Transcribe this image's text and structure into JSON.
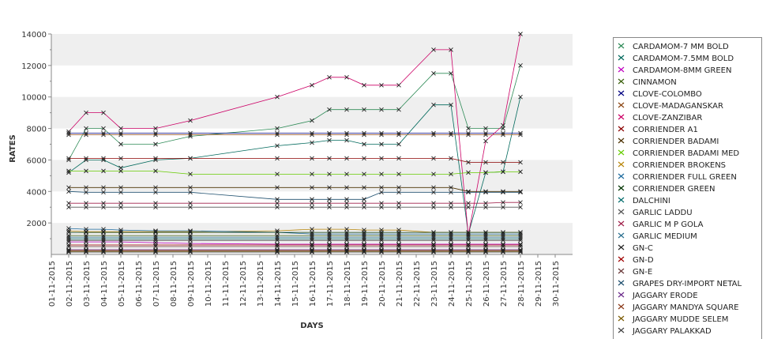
{
  "chart_data": {
    "type": "line",
    "title": "",
    "xlabel": "DAYS",
    "ylabel": "RATES",
    "x_categories": [
      "01-11-2015",
      "02-11-2015",
      "03-11-2015",
      "04-11-2015",
      "05-11-2015",
      "06-11-2015",
      "07-11-2015",
      "08-11-2015",
      "09-11-2015",
      "10-11-2015",
      "11-11-2015",
      "12-11-2015",
      "13-11-2015",
      "14-11-2015",
      "15-11-2015",
      "16-11-2015",
      "17-11-2015",
      "18-11-2015",
      "19-11-2015",
      "20-11-2015",
      "21-11-2015",
      "22-11-2015",
      "23-11-2015",
      "24-11-2015",
      "25-11-2015",
      "26-11-2015",
      "27-11-2015",
      "28-11-2015",
      "29-11-2015",
      "30-11-2015"
    ],
    "ylim": [
      0,
      14000
    ],
    "yticks": [
      2000,
      4000,
      6000,
      8000,
      10000,
      12000,
      14000
    ],
    "grid": "alternating horizontal bands",
    "legend_position": "right",
    "series": [
      {
        "name": "CARDAMOM-7 MM BOLD",
        "color": "#2e8b57",
        "dates": [
          2,
          3,
          4,
          5,
          7,
          9,
          14,
          16,
          17,
          18,
          19,
          20,
          21,
          23,
          24,
          25,
          26,
          27,
          28
        ],
        "values": [
          6000,
          8000,
          8000,
          7000,
          7000,
          7500,
          8000,
          8500,
          9200,
          9200,
          9200,
          9200,
          9200,
          11500,
          11500,
          8000,
          8000,
          8000,
          12000
        ]
      },
      {
        "name": "CARDAMOM-7.5MM BOLD",
        "color": "#00695c",
        "dates": [
          2,
          3,
          4,
          5,
          7,
          9,
          14,
          16,
          17,
          18,
          19,
          20,
          21,
          23,
          24,
          25,
          26,
          27,
          28
        ],
        "values": [
          5200,
          6000,
          6000,
          5500,
          6000,
          6100,
          6900,
          7100,
          7250,
          7250,
          7000,
          7000,
          7000,
          9500,
          9500,
          1300,
          5200,
          5250,
          10000
        ]
      },
      {
        "name": "CARDAMOM-8MM GREEN",
        "color": "#c000c0",
        "dates": [
          2,
          3,
          4,
          5,
          7,
          9,
          14,
          16,
          17,
          18,
          19,
          20,
          21,
          23,
          24,
          25,
          26,
          27,
          28
        ],
        "values": [
          800,
          800,
          800,
          800,
          750,
          700,
          650,
          650,
          650,
          650,
          650,
          650,
          650,
          650,
          650,
          650,
          650,
          650,
          650
        ]
      },
      {
        "name": "CINNAMON",
        "color": "#3a5f0b",
        "dates": [
          2,
          3,
          4,
          5,
          7,
          9,
          14,
          16,
          17,
          18,
          19,
          20,
          21,
          23,
          24,
          25,
          26,
          27,
          28
        ],
        "values": [
          1200,
          1200,
          1200,
          1200,
          1200,
          1200,
          1200,
          1200,
          1200,
          1200,
          1200,
          1200,
          1200,
          1200,
          1200,
          1200,
          1200,
          1200,
          1200
        ]
      },
      {
        "name": "CLOVE-COLOMBO",
        "color": "#000080",
        "dates": [
          2,
          3,
          4,
          5,
          7,
          9,
          14,
          16,
          17,
          18,
          19,
          20,
          21,
          23,
          24,
          25,
          26,
          27,
          28
        ],
        "values": [
          7700,
          7700,
          7700,
          7700,
          7700,
          7700,
          7700,
          7700,
          7700,
          7700,
          7700,
          7700,
          7700,
          7700,
          7700,
          7700,
          7700,
          7700,
          7700
        ]
      },
      {
        "name": "CLOVE-MADAGANSKAR",
        "color": "#8b4513",
        "dates": [
          2,
          3,
          4,
          5,
          7,
          9,
          14,
          16,
          17,
          18,
          19,
          20,
          21,
          23,
          24,
          25,
          26,
          27,
          28
        ],
        "values": [
          7600,
          7600,
          7600,
          7600,
          7600,
          7600,
          7600,
          7600,
          7600,
          7600,
          7600,
          7600,
          7600,
          7600,
          7600,
          7600,
          7600,
          7600,
          7600
        ]
      },
      {
        "name": "CLOVE-ZANZIBAR",
        "color": "#cc0066",
        "dates": [
          2,
          3,
          4,
          5,
          7,
          9,
          14,
          16,
          17,
          18,
          19,
          20,
          21,
          23,
          24,
          25,
          26,
          27,
          28
        ],
        "values": [
          7800,
          9000,
          9000,
          8000,
          8000,
          8500,
          10000,
          10750,
          11250,
          11250,
          10750,
          10750,
          10750,
          13000,
          13000,
          1200,
          7200,
          8200,
          14000
        ]
      },
      {
        "name": "CORRIENDER A1",
        "color": "#8b0000",
        "dates": [
          2,
          3,
          4,
          5,
          7,
          9,
          14,
          16,
          17,
          18,
          19,
          20,
          21,
          23,
          24,
          25,
          26,
          27,
          28
        ],
        "values": [
          6100,
          6100,
          6100,
          6100,
          6100,
          6100,
          6100,
          6100,
          6100,
          6100,
          6100,
          6100,
          6100,
          6100,
          6100,
          5850,
          5850,
          5850,
          5850
        ]
      },
      {
        "name": "CORRIENDER BADAMI",
        "color": "#4b3000",
        "dates": [
          2,
          3,
          4,
          5,
          7,
          9,
          14,
          16,
          17,
          18,
          19,
          20,
          21,
          23,
          24,
          25,
          26,
          27,
          28
        ],
        "values": [
          4250,
          4250,
          4250,
          4250,
          4250,
          4250,
          4250,
          4250,
          4250,
          4250,
          4250,
          4250,
          4250,
          4250,
          4250,
          4000,
          4000,
          4000,
          4000
        ]
      },
      {
        "name": "CORRIENDER BADAMI MED",
        "color": "#66cc00",
        "dates": [
          2,
          3,
          4,
          5,
          7,
          9,
          14,
          16,
          17,
          18,
          19,
          20,
          21,
          23,
          24,
          25,
          26,
          27,
          28
        ],
        "values": [
          5300,
          5300,
          5300,
          5300,
          5300,
          5100,
          5100,
          5100,
          5100,
          5100,
          5100,
          5100,
          5100,
          5100,
          5100,
          5200,
          5200,
          5250,
          5250
        ]
      },
      {
        "name": "CORRIENDER BROKENS",
        "color": "#b8860b",
        "dates": [
          2,
          3,
          4,
          5,
          7,
          9,
          14,
          16,
          17,
          18,
          19,
          20,
          21,
          23,
          24,
          25,
          26,
          27,
          28
        ],
        "values": [
          1500,
          1450,
          1450,
          1450,
          1450,
          1450,
          1500,
          1600,
          1600,
          1600,
          1550,
          1550,
          1550,
          1400,
          1400,
          1400,
          1400,
          1400,
          1400
        ]
      },
      {
        "name": "CORRIENDER FULL GREEN",
        "color": "#1e6b9e",
        "dates": [
          2,
          3,
          4,
          5,
          7,
          9,
          14,
          16,
          17,
          18,
          19,
          20,
          21,
          23,
          24,
          25,
          26,
          27,
          28
        ],
        "values": [
          1650,
          1600,
          1600,
          1550,
          1500,
          1500,
          1400,
          1300,
          1300,
          1300,
          1300,
          1300,
          1300,
          1300,
          1300,
          1300,
          1300,
          1300,
          1300
        ]
      },
      {
        "name": "CORRIENDER GREEN",
        "color": "#003300",
        "dates": [
          2,
          3,
          4,
          5,
          7,
          9,
          14,
          16,
          17,
          18,
          19,
          20,
          21,
          23,
          24,
          25,
          26,
          27,
          28
        ],
        "values": [
          1400,
          1400,
          1400,
          1400,
          1400,
          1400,
          1400,
          1400,
          1400,
          1400,
          1400,
          1400,
          1400,
          1400,
          1400,
          1400,
          1400,
          1400,
          1400
        ]
      },
      {
        "name": "DALCHINI",
        "color": "#006b6b",
        "dates": [
          2,
          3,
          4,
          5,
          7,
          9,
          14,
          16,
          17,
          18,
          19,
          20,
          21,
          23,
          24,
          25,
          26,
          27,
          28
        ],
        "values": [
          1000,
          1000,
          1000,
          1000,
          1000,
          1000,
          1000,
          1000,
          1000,
          1000,
          1000,
          1000,
          1000,
          1000,
          1000,
          1000,
          1000,
          1000,
          1000
        ]
      },
      {
        "name": "GARLIC LADDU",
        "color": "#555555",
        "dates": [
          2,
          3,
          4,
          5,
          7,
          9,
          14,
          16,
          17,
          18,
          19,
          20,
          21,
          23,
          24,
          25,
          26,
          27,
          28
        ],
        "values": [
          3000,
          3000,
          3000,
          3000,
          3000,
          3000,
          3000,
          3000,
          3000,
          3000,
          3000,
          3000,
          3000,
          3000,
          3000,
          3000,
          3000,
          3000,
          3000
        ]
      },
      {
        "name": "GARLIC M P GOLA",
        "color": "#a0204a",
        "dates": [
          2,
          3,
          4,
          5,
          7,
          9,
          14,
          16,
          17,
          18,
          19,
          20,
          21,
          23,
          24,
          25,
          26,
          27,
          28
        ],
        "values": [
          3250,
          3250,
          3250,
          3250,
          3250,
          3250,
          3250,
          3250,
          3250,
          3250,
          3250,
          3250,
          3250,
          3250,
          3250,
          3250,
          3250,
          3300,
          3300
        ]
      },
      {
        "name": "GARLIC MEDIUM",
        "color": "#2a6f8f",
        "dates": [
          2,
          3,
          4,
          5,
          7,
          9,
          14,
          16,
          17,
          18,
          19,
          20,
          21,
          23,
          24,
          25,
          26,
          27,
          28
        ],
        "values": [
          1100,
          1100,
          1100,
          1100,
          1100,
          1100,
          1100,
          1100,
          1100,
          1100,
          1100,
          1100,
          1100,
          1100,
          1100,
          1100,
          1100,
          1100,
          1100
        ]
      },
      {
        "name": "GN-C",
        "color": "#222222",
        "dates": [
          2,
          3,
          4,
          5,
          7,
          9,
          14,
          16,
          17,
          18,
          19,
          20,
          21,
          23,
          24,
          25,
          26,
          27,
          28
        ],
        "values": [
          900,
          900,
          900,
          900,
          900,
          900,
          900,
          900,
          900,
          900,
          900,
          900,
          900,
          900,
          900,
          900,
          900,
          900,
          900
        ]
      },
      {
        "name": "GN-D",
        "color": "#a00000",
        "dates": [
          2,
          3,
          4,
          5,
          7,
          9,
          14,
          16,
          17,
          18,
          19,
          20,
          21,
          23,
          24,
          25,
          26,
          27,
          28
        ],
        "values": [
          600,
          600,
          600,
          600,
          600,
          600,
          600,
          600,
          600,
          600,
          600,
          600,
          600,
          600,
          600,
          600,
          600,
          600,
          600
        ]
      },
      {
        "name": "GN-E",
        "color": "#6b3a3a",
        "dates": [
          2,
          3,
          4,
          5,
          7,
          9,
          14,
          16,
          17,
          18,
          19,
          20,
          21,
          23,
          24,
          25,
          26,
          27,
          28
        ],
        "values": [
          500,
          500,
          500,
          500,
          500,
          500,
          500,
          500,
          500,
          500,
          500,
          500,
          500,
          500,
          500,
          500,
          500,
          500,
          500
        ]
      },
      {
        "name": "GRAPES DRY-IMPORT NETAL",
        "color": "#1e4f6e",
        "dates": [
          2,
          3,
          4,
          5,
          7,
          9,
          14,
          16,
          17,
          18,
          19,
          20,
          21,
          23,
          24,
          25,
          26,
          27,
          28
        ],
        "values": [
          4000,
          3950,
          3950,
          3950,
          3950,
          3950,
          3500,
          3500,
          3500,
          3500,
          3500,
          3950,
          3950,
          3950,
          3950,
          3950,
          3950,
          3950,
          3950
        ]
      },
      {
        "name": "JAGGARY ERODE",
        "color": "#6a2a8a",
        "dates": [
          2,
          3,
          4,
          5,
          7,
          9,
          14,
          16,
          17,
          18,
          19,
          20,
          21,
          23,
          24,
          25,
          26,
          27,
          28
        ],
        "values": [
          300,
          300,
          300,
          300,
          300,
          300,
          300,
          300,
          300,
          300,
          300,
          300,
          300,
          300,
          300,
          300,
          300,
          300,
          300
        ]
      },
      {
        "name": "JAGGARY MANDYA SQUARE",
        "color": "#8b3a1a",
        "dates": [
          2,
          3,
          4,
          5,
          7,
          9,
          14,
          16,
          17,
          18,
          19,
          20,
          21,
          23,
          24,
          25,
          26,
          27,
          28
        ],
        "values": [
          250,
          250,
          250,
          250,
          250,
          250,
          250,
          250,
          250,
          250,
          250,
          250,
          250,
          250,
          250,
          250,
          250,
          250,
          250
        ]
      },
      {
        "name": "JAGGARY MUDDE SELEM",
        "color": "#7a5a00",
        "dates": [
          2,
          3,
          4,
          5,
          7,
          9,
          14,
          16,
          17,
          18,
          19,
          20,
          21,
          23,
          24,
          25,
          26,
          27,
          28
        ],
        "values": [
          200,
          200,
          200,
          200,
          200,
          200,
          200,
          200,
          200,
          200,
          200,
          200,
          200,
          200,
          200,
          200,
          200,
          200,
          200
        ]
      },
      {
        "name": "JAGGARY PALAKKAD",
        "color": "#444444",
        "dates": [
          2,
          3,
          4,
          5,
          7,
          9,
          14,
          16,
          17,
          18,
          19,
          20,
          21,
          23,
          24,
          25,
          26,
          27,
          28
        ],
        "values": [
          150,
          150,
          150,
          150,
          150,
          150,
          150,
          150,
          150,
          150,
          150,
          150,
          150,
          150,
          150,
          150,
          150,
          150,
          150
        ]
      }
    ]
  }
}
